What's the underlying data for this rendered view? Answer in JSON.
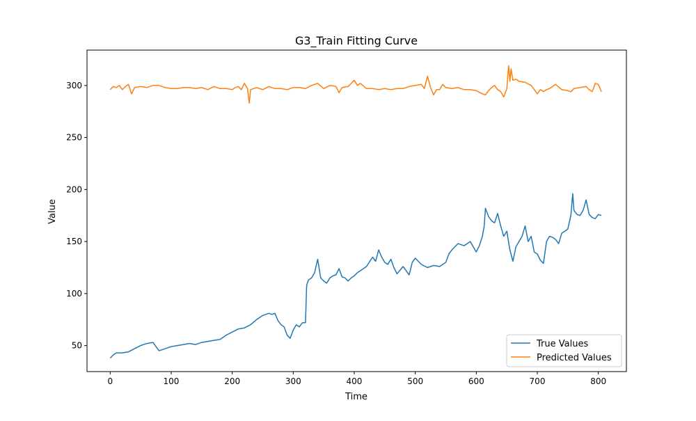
{
  "chart_data": {
    "type": "line",
    "title": "G3_Train Fitting Curve",
    "xlabel": "Time",
    "ylabel": "Value",
    "xlim": [
      -38,
      846
    ],
    "ylim": [
      25,
      334
    ],
    "xticks": [
      0,
      100,
      200,
      300,
      400,
      500,
      600,
      700,
      800
    ],
    "yticks": [
      50,
      100,
      150,
      200,
      250,
      300
    ],
    "legend_position": "lower right",
    "grid": false,
    "series": [
      {
        "name": "True Values",
        "color": "#1f77b4",
        "x": [
          0,
          5,
          10,
          20,
          30,
          40,
          50,
          60,
          70,
          75,
          80,
          90,
          100,
          110,
          120,
          130,
          140,
          150,
          160,
          170,
          180,
          190,
          200,
          210,
          220,
          230,
          240,
          250,
          255,
          260,
          265,
          270,
          275,
          280,
          285,
          290,
          295,
          300,
          305,
          310,
          315,
          320,
          322,
          325,
          330,
          335,
          340,
          345,
          350,
          355,
          360,
          365,
          370,
          375,
          380,
          385,
          390,
          395,
          400,
          405,
          410,
          420,
          430,
          435,
          440,
          445,
          450,
          455,
          460,
          465,
          470,
          480,
          490,
          495,
          500,
          510,
          520,
          530,
          540,
          550,
          555,
          560,
          570,
          580,
          590,
          600,
          605,
          610,
          613,
          615,
          620,
          625,
          630,
          635,
          640,
          645,
          650,
          655,
          660,
          665,
          670,
          675,
          680,
          685,
          690,
          695,
          700,
          705,
          710,
          715,
          720,
          725,
          730,
          735,
          740,
          745,
          750,
          755,
          758,
          760,
          765,
          770,
          775,
          780,
          785,
          790,
          795,
          800,
          805
        ],
        "values": [
          38,
          41,
          43,
          43,
          44,
          47,
          50,
          52,
          53,
          49,
          45,
          47,
          49,
          50,
          51,
          52,
          51,
          53,
          54,
          55,
          56,
          60,
          63,
          66,
          67,
          70,
          75,
          79,
          80,
          81,
          80,
          81,
          74,
          70,
          68,
          60,
          57,
          65,
          70,
          68,
          72,
          72,
          108,
          113,
          115,
          120,
          133,
          115,
          112,
          110,
          115,
          117,
          118,
          124,
          116,
          115,
          112,
          115,
          117,
          120,
          122,
          126,
          135,
          131,
          142,
          135,
          130,
          128,
          133,
          125,
          119,
          126,
          118,
          130,
          134,
          128,
          125,
          127,
          126,
          130,
          138,
          142,
          148,
          146,
          150,
          140,
          146,
          155,
          165,
          182,
          174,
          170,
          168,
          177,
          165,
          155,
          160,
          142,
          131,
          145,
          150,
          155,
          165,
          150,
          155,
          140,
          138,
          132,
          129,
          150,
          155,
          154,
          152,
          148,
          158,
          160,
          162,
          175,
          196,
          180,
          176,
          175,
          180,
          190,
          176,
          173,
          172,
          176,
          175
        ]
      },
      {
        "name": "Predicted Values",
        "color": "#ff7f0e",
        "x": [
          0,
          5,
          10,
          15,
          20,
          25,
          30,
          35,
          40,
          50,
          60,
          70,
          80,
          90,
          100,
          110,
          120,
          130,
          140,
          150,
          160,
          170,
          180,
          190,
          200,
          205,
          210,
          215,
          220,
          225,
          228,
          230,
          240,
          250,
          260,
          270,
          280,
          290,
          300,
          310,
          320,
          330,
          340,
          350,
          360,
          370,
          375,
          380,
          390,
          400,
          405,
          410,
          420,
          430,
          440,
          450,
          460,
          470,
          480,
          490,
          500,
          510,
          515,
          520,
          525,
          530,
          535,
          540,
          545,
          550,
          560,
          570,
          580,
          590,
          600,
          610,
          615,
          620,
          625,
          630,
          635,
          640,
          645,
          650,
          653,
          655,
          657,
          660,
          665,
          670,
          680,
          690,
          700,
          705,
          710,
          715,
          720,
          730,
          740,
          750,
          755,
          760,
          770,
          780,
          785,
          790,
          795,
          800,
          805
        ],
        "values": [
          296,
          299,
          298,
          300,
          296,
          299,
          301,
          292,
          298,
          299,
          298,
          300,
          300,
          298,
          297,
          297,
          298,
          298,
          297,
          298,
          296,
          299,
          297,
          297,
          296,
          298,
          299,
          296,
          302,
          297,
          283,
          296,
          298,
          296,
          299,
          297,
          297,
          296,
          298,
          298,
          297,
          300,
          302,
          297,
          300,
          299,
          293,
          298,
          299,
          305,
          300,
          302,
          297,
          297,
          296,
          297,
          296,
          297,
          297,
          299,
          300,
          301,
          297,
          309,
          298,
          291,
          296,
          296,
          301,
          298,
          297,
          298,
          296,
          296,
          295,
          292,
          291,
          295,
          298,
          300,
          296,
          294,
          289,
          297,
          319,
          304,
          316,
          305,
          306,
          304,
          303,
          300,
          292,
          296,
          294,
          296,
          297,
          301,
          296,
          295,
          294,
          297,
          298,
          299,
          296,
          294,
          302,
          301,
          294
        ]
      }
    ]
  }
}
